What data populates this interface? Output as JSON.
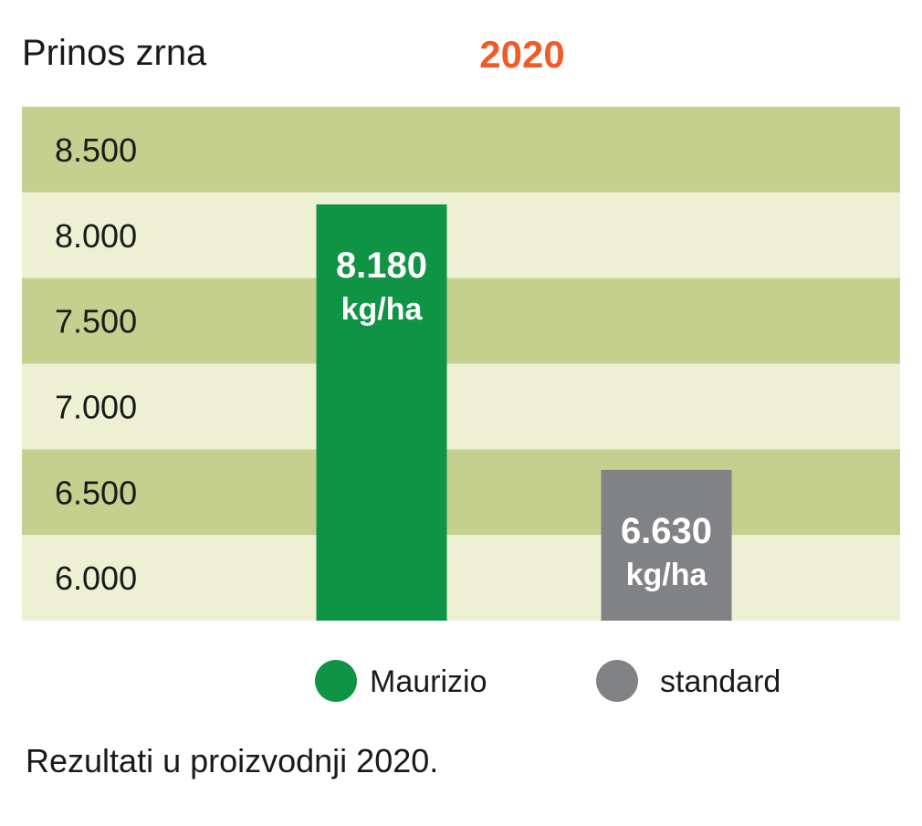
{
  "chart_data": {
    "type": "bar",
    "title": "2020",
    "ylabel": "Prinos zrna",
    "caption": "Rezultati u proizvodnji 2020.",
    "unit": "kg/ha",
    "categories": [
      "Maurizio",
      "standard"
    ],
    "values": [
      8180,
      6630
    ],
    "value_labels": [
      "8.180",
      "6.630"
    ],
    "yticks": [
      8500,
      8000,
      7500,
      7000,
      6500,
      6000
    ],
    "ytick_labels": [
      "8.500",
      "8.000",
      "7.500",
      "7.000",
      "6.500",
      "6.000"
    ],
    "ylim": [
      5750,
      8750
    ],
    "grid": "alternating horizontal bands",
    "legend": {
      "position": "bottom",
      "entries": [
        {
          "label": "Maurizio",
          "color": "#0e9444"
        },
        {
          "label": "standard",
          "color": "#808285"
        }
      ]
    },
    "colors": {
      "title": "#f15a29",
      "band_dark": "#c5cf8e",
      "band_light": "#eef0d3",
      "bar_label": "#ffffff",
      "text": "#1a1a1a"
    }
  }
}
